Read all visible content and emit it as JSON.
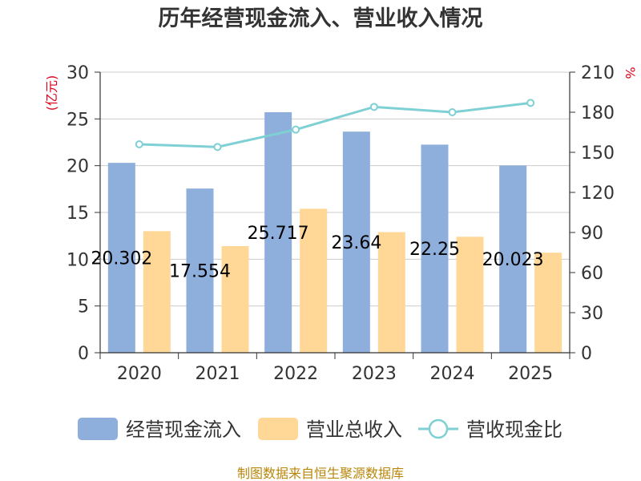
{
  "title": "历年经营现金流入、营业收入情况",
  "left_unit": "(亿元)",
  "right_unit": "%",
  "source": "制图数据来自恒生聚源数据库",
  "colors": {
    "bar1": "#8eaedb",
    "bar2": "#ffd898",
    "line": "#7fd0d4",
    "axis": "#333333",
    "grid": "#cccccc",
    "unit": "#e0001b",
    "source": "#b8860b"
  },
  "chart_data": {
    "type": "bar",
    "categories": [
      "2020",
      "2021",
      "2022",
      "2023",
      "2024",
      "2025"
    ],
    "ylim_left": [
      0,
      30
    ],
    "yticks_left": [
      0,
      5,
      10,
      15,
      20,
      25,
      30
    ],
    "ylim_right": [
      0,
      210
    ],
    "yticks_right": [
      0,
      30,
      60,
      90,
      120,
      150,
      180,
      210
    ],
    "grid": true,
    "legend_position": "bottom",
    "series": [
      {
        "name": "经营现金流入",
        "kind": "bar",
        "axis": "left",
        "values": [
          20.302,
          17.554,
          25.717,
          23.64,
          22.25,
          20.023
        ],
        "labels": [
          "20.302",
          "17.554",
          "25.717",
          "23.64",
          "22.25",
          "20.023"
        ]
      },
      {
        "name": "营业总收入",
        "kind": "bar",
        "axis": "left",
        "values": [
          13.0,
          11.4,
          15.4,
          12.9,
          12.4,
          10.7
        ]
      },
      {
        "name": "营收现金比",
        "kind": "line",
        "axis": "right",
        "values": [
          156,
          154,
          167,
          184,
          180,
          187
        ]
      }
    ]
  }
}
